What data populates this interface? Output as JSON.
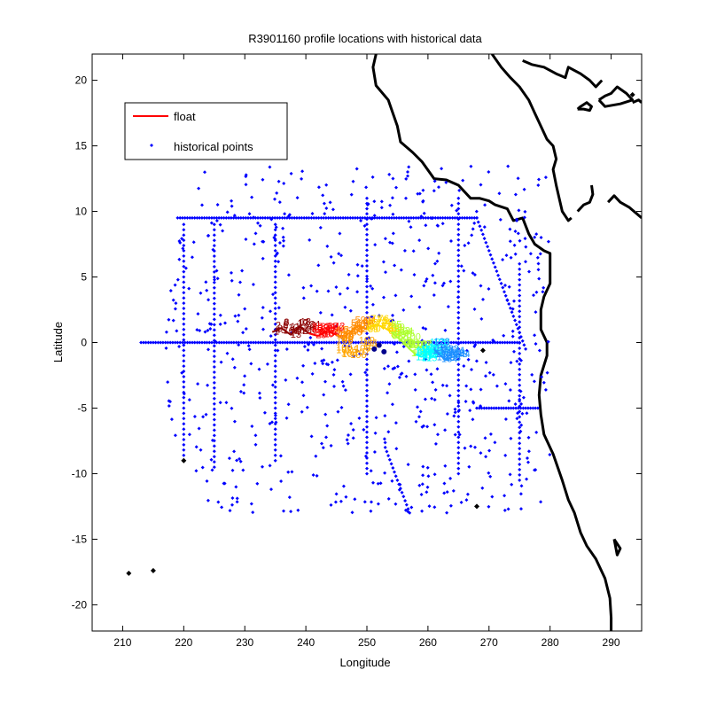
{
  "chart_data": {
    "type": "scatter",
    "title": "R3901160 profile locations with historical data",
    "xlabel": "Longitude",
    "ylabel": "Latitude",
    "xlim": [
      205,
      295
    ],
    "ylim": [
      -22,
      22
    ],
    "xticks": [
      210,
      220,
      230,
      240,
      250,
      260,
      270,
      280,
      290
    ],
    "yticks": [
      -20,
      -15,
      -10,
      -5,
      0,
      5,
      10,
      15,
      20
    ],
    "grid": false,
    "legend": {
      "placement": "top-left",
      "entries": [
        {
          "label": "float",
          "style": "line",
          "color": "#ff0000"
        },
        {
          "label": "historical points",
          "style": "marker",
          "color": "#0000ff"
        }
      ]
    },
    "colors": {
      "historical": "#0000ff",
      "coastline": "#000000",
      "float_track_gradient": [
        "#8b0000",
        "#ff0000",
        "#ff8c00",
        "#ffd700",
        "#adff2f",
        "#00ffff",
        "#1e90ff"
      ]
    },
    "series": [
      {
        "name": "historical points",
        "style": "marker",
        "lines": [
          {
            "x": [
              213,
              275
            ],
            "y": [
              0,
              0
            ]
          },
          {
            "x": [
              219,
              268
            ],
            "y": [
              9.5,
              9.5
            ]
          },
          {
            "x": [
              220,
              220
            ],
            "y": [
              -9,
              9
            ]
          },
          {
            "x": [
              225,
              225
            ],
            "y": [
              -9.5,
              9
            ]
          },
          {
            "x": [
              235,
              235
            ],
            "y": [
              -9,
              9
            ]
          },
          {
            "x": [
              250,
              250
            ],
            "y": [
              -10,
              11
            ]
          },
          {
            "x": [
              265,
              265
            ],
            "y": [
              -10,
              11
            ]
          },
          {
            "x": [
              275,
              275
            ],
            "y": [
              -10.5,
              6
            ]
          },
          {
            "x": [
              253,
              257
            ],
            "y": [
              -8,
              -13
            ]
          },
          {
            "x": [
              268,
              276
            ],
            "y": [
              9.5,
              -0.5
            ]
          },
          {
            "x": [
              268,
              278
            ],
            "y": [
              -5,
              -5
            ]
          }
        ],
        "scatter_region": {
          "x": [
            217,
            280
          ],
          "y": [
            -13,
            13.5
          ]
        }
      },
      {
        "name": "float",
        "style": "line",
        "track": [
          [
            234.5,
            0.8
          ],
          [
            236.0,
            1.1
          ],
          [
            237.5,
            0.6
          ],
          [
            239.0,
            1.2
          ],
          [
            240.5,
            0.7
          ],
          [
            242.0,
            0.5
          ],
          [
            243.5,
            0.9
          ],
          [
            245.0,
            0.6
          ],
          [
            246.0,
            0.3
          ],
          [
            247.5,
            0.9
          ],
          [
            248.5,
            1.3
          ],
          [
            250.0,
            1.0
          ],
          [
            251.5,
            1.4
          ],
          [
            253.0,
            1.1
          ],
          [
            254.0,
            0.8
          ],
          [
            255.0,
            0.4
          ],
          [
            256.0,
            0.0
          ],
          [
            257.0,
            -0.5
          ],
          [
            258.0,
            -0.9
          ],
          [
            259.0,
            -1.1
          ],
          [
            260.0,
            -0.7
          ],
          [
            261.0,
            -0.5
          ],
          [
            262.0,
            -1.0
          ],
          [
            263.0,
            -1.3
          ],
          [
            264.0,
            -1.1
          ]
        ],
        "orange_branch": [
          [
            244.5,
            -0.4
          ],
          [
            246.0,
            -1.0
          ],
          [
            247.5,
            -0.8
          ],
          [
            249.0,
            -0.3
          ]
        ],
        "navy_blob": [
          [
            251.2,
            -0.5
          ],
          [
            252.0,
            -0.2
          ],
          [
            252.8,
            -0.7
          ]
        ]
      }
    ],
    "extra_black_points": [
      [
        220,
        -9
      ],
      [
        269,
        -0.6
      ],
      [
        268,
        -12.5
      ],
      [
        211,
        -17.6
      ],
      [
        215,
        -17.4
      ],
      [
        293.5,
        18.9
      ]
    ],
    "coastline": [
      [
        [
          251.5,
          22.0
        ],
        [
          251.0,
          21.0
        ],
        [
          251.5,
          19.6
        ],
        [
          253.5,
          18.5
        ],
        [
          255.0,
          16.5
        ],
        [
          255.5,
          15.3
        ],
        [
          257.5,
          14.5
        ],
        [
          259.0,
          13.8
        ],
        [
          261.0,
          12.5
        ],
        [
          263.0,
          12.4
        ],
        [
          265.0,
          12.0
        ],
        [
          267.0,
          11.0
        ],
        [
          268.5,
          11.0
        ],
        [
          270.0,
          10.8
        ],
        [
          271.0,
          10.5
        ],
        [
          273.0,
          10.2
        ],
        [
          274.0,
          9.3
        ],
        [
          275.5,
          9.5
        ],
        [
          276.5,
          8.3
        ],
        [
          277.5,
          7.5
        ],
        [
          279.0,
          7.0
        ],
        [
          280.0,
          6.8
        ],
        [
          280.0,
          4.5
        ],
        [
          279.0,
          3.5
        ],
        [
          278.5,
          2.5
        ],
        [
          278.5,
          1.0
        ],
        [
          279.5,
          0.0
        ],
        [
          279.5,
          -1.0
        ],
        [
          278.5,
          -2.5
        ],
        [
          278.2,
          -4.0
        ],
        [
          278.5,
          -5.5
        ],
        [
          279.0,
          -7.0
        ],
        [
          280.5,
          -8.5
        ],
        [
          282.0,
          -10.5
        ],
        [
          283.0,
          -12.0
        ],
        [
          284.0,
          -13.0
        ],
        [
          285.0,
          -14.5
        ],
        [
          286.0,
          -15.5
        ],
        [
          287.5,
          -16.5
        ],
        [
          289.0,
          -18.0
        ],
        [
          289.8,
          -19.5
        ],
        [
          290.0,
          -21.0
        ],
        [
          290.0,
          -22.0
        ]
      ],
      [
        [
          270.5,
          22.0
        ],
        [
          272.0,
          21.0
        ],
        [
          273.5,
          20.2
        ],
        [
          275.0,
          19.5
        ],
        [
          276.5,
          18.5
        ],
        [
          277.5,
          17.5
        ],
        [
          278.5,
          16.5
        ],
        [
          279.5,
          15.5
        ],
        [
          280.5,
          15.0
        ],
        [
          281.0,
          14.0
        ],
        [
          280.5,
          13.2
        ],
        [
          281.0,
          12.0
        ],
        [
          281.5,
          11.0
        ],
        [
          282.0,
          10.0
        ],
        [
          283.0,
          9.3
        ],
        [
          283.5,
          9.5
        ]
      ],
      [
        [
          284.5,
          10.0
        ],
        [
          285.5,
          10.5
        ],
        [
          286.5,
          10.7
        ],
        [
          287.0,
          11.3
        ],
        [
          286.8,
          12.0
        ]
      ],
      [
        [
          289.5,
          10.7
        ],
        [
          290.5,
          11.2
        ],
        [
          291.5,
          10.7
        ],
        [
          293.0,
          10.3
        ],
        [
          295.0,
          9.5
        ]
      ],
      [
        [
          275.5,
          21.5
        ],
        [
          277.0,
          21.2
        ],
        [
          279.0,
          21.0
        ],
        [
          281.0,
          20.5
        ],
        [
          282.5,
          20.2
        ],
        [
          283.0,
          21.0
        ],
        [
          285.0,
          20.5
        ],
        [
          286.5,
          20.0
        ],
        [
          287.5,
          19.5
        ],
        [
          288.5,
          20.0
        ]
      ],
      [
        [
          284.5,
          17.8
        ],
        [
          285.0,
          18.0
        ],
        [
          286.0,
          18.3
        ],
        [
          286.8,
          18.0
        ],
        [
          286.5,
          17.7
        ],
        [
          285.5,
          17.8
        ],
        [
          284.5,
          17.8
        ]
      ],
      [
        [
          288.0,
          18.5
        ],
        [
          289.0,
          18.8
        ],
        [
          290.0,
          19.0
        ],
        [
          291.0,
          19.5
        ],
        [
          292.5,
          19.0
        ],
        [
          293.5,
          18.5
        ],
        [
          291.5,
          18.2
        ],
        [
          289.0,
          18.0
        ],
        [
          288.0,
          18.5
        ]
      ],
      [
        [
          293.5,
          18.3
        ],
        [
          294.5,
          18.5
        ],
        [
          295.0,
          18.3
        ]
      ],
      [
        [
          290.5,
          -15.0
        ],
        [
          291.5,
          -15.7
        ],
        [
          291.0,
          -16.2
        ],
        [
          290.5,
          -15.0
        ]
      ]
    ]
  }
}
